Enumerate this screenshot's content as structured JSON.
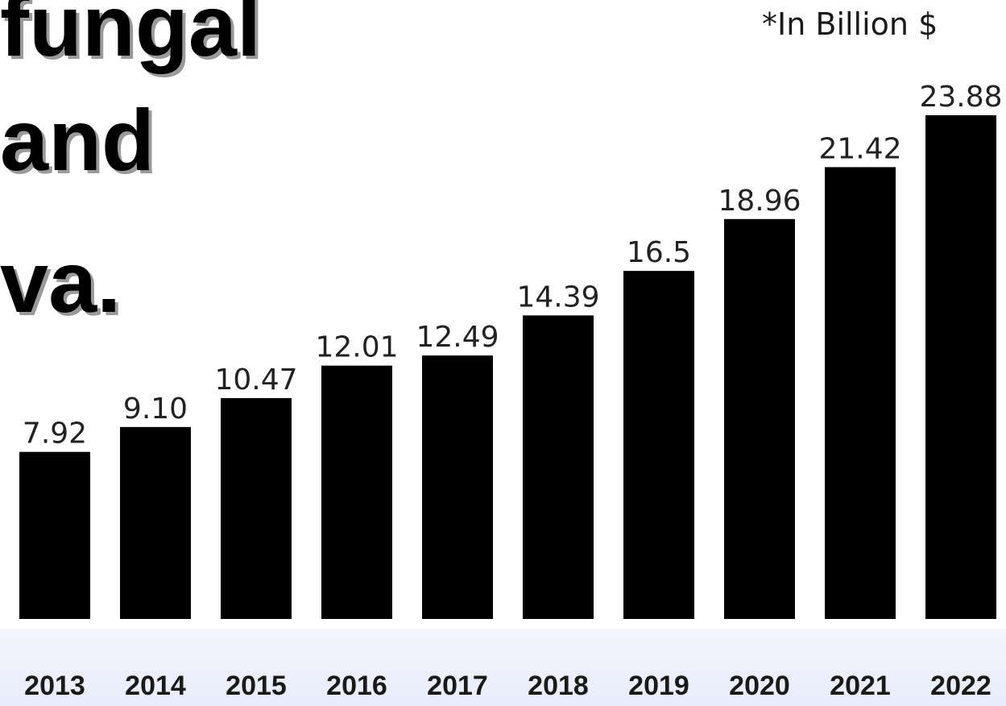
{
  "headline": {
    "lines": [
      "fungal",
      "and",
      "va."
    ]
  },
  "unit_note": "*In Billion $",
  "colors": {
    "bar": "#000000",
    "value_label": "#222222",
    "category_label": "#1a1a1a",
    "footer_band": "#eef1fc",
    "headline_shadow": "#9a9a9a"
  },
  "chart_data": {
    "type": "bar",
    "title": "",
    "xlabel": "",
    "ylabel": "",
    "categories": [
      "2013",
      "2014",
      "2015",
      "2016",
      "2017",
      "2018",
      "2019",
      "2020",
      "2021",
      "2022"
    ],
    "values": [
      7.92,
      9.1,
      10.47,
      12.01,
      12.49,
      14.39,
      16.5,
      18.96,
      21.42,
      23.88
    ],
    "value_labels": [
      "7.92",
      "9.10",
      "10.47",
      "12.01",
      "12.49",
      "14.39",
      "16.5",
      "18.96",
      "21.42",
      "23.88"
    ],
    "ylim": [
      0,
      25
    ],
    "grid": false,
    "legend": "none",
    "data_labels": "above bars"
  }
}
